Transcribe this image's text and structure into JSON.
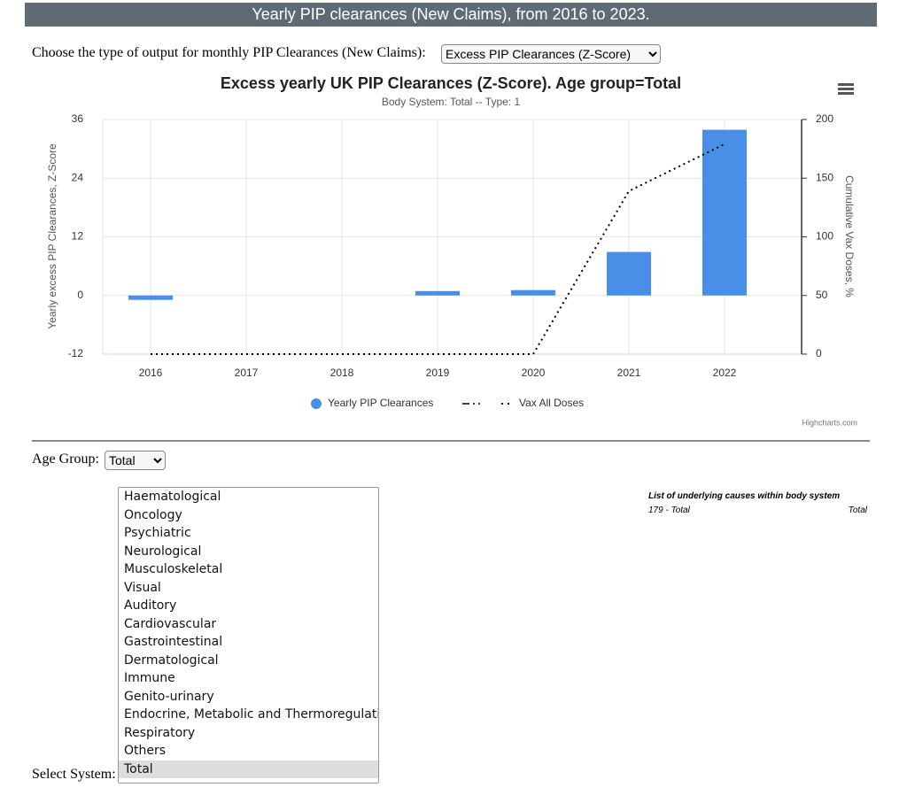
{
  "header": {
    "title": "Yearly PIP clearances (New Claims), from 2016 to 2023."
  },
  "output_control": {
    "label": "Choose the type of output for monthly PIP Clearances (New Claims):",
    "selected": "Excess PIP Clearances (Z-Score)"
  },
  "chart_data": {
    "type": "bar",
    "title": "Excess yearly UK PIP Clearances (Z-Score). Age group=Total",
    "subtitle": "Body System: Total -- Type: 1",
    "categories": [
      "2016",
      "2017",
      "2018",
      "2019",
      "2020",
      "2021",
      "2022"
    ],
    "series": [
      {
        "name": "Yearly PIP Clearances",
        "type": "bar",
        "color": "#4a8fe7",
        "values": [
          -0.9,
          0,
          0,
          0.9,
          1.1,
          8.9,
          33.9
        ]
      },
      {
        "name": "Vax All Doses",
        "type": "line",
        "axis": "y2",
        "color": "#000000",
        "values": [
          0,
          0,
          0,
          0,
          0,
          139,
          179
        ]
      }
    ],
    "ylabel": "Yearly excess PIP Clearances, Z-Score",
    "y2label": "Cumulative Vax Doses, %",
    "ylim": [
      -12,
      36
    ],
    "yticks": [
      -12,
      0,
      12,
      24,
      36
    ],
    "y2lim": [
      0,
      200
    ],
    "y2ticks": [
      0,
      50,
      100,
      150,
      200
    ],
    "grid": true,
    "legend": "bottom",
    "credits": "Highcharts.com"
  },
  "age_group": {
    "label": "Age Group:",
    "selected": "Total"
  },
  "system_list": {
    "label": "Select System:",
    "options": [
      "Haematological",
      "Oncology",
      "Psychiatric",
      "Neurological",
      "Musculoskeletal",
      "Visual",
      "Auditory",
      "Cardiovascular",
      "Gastrointestinal",
      "Dermatological",
      "Immune",
      "Genito-urinary",
      "Endocrine, Metabolic and Thermoregulation",
      "Respiratory",
      "Others",
      "Total"
    ],
    "selected": 15
  },
  "causes": {
    "title": "List of underlying causes within body system",
    "rows": [
      [
        "179 - Total",
        "Total"
      ]
    ]
  }
}
